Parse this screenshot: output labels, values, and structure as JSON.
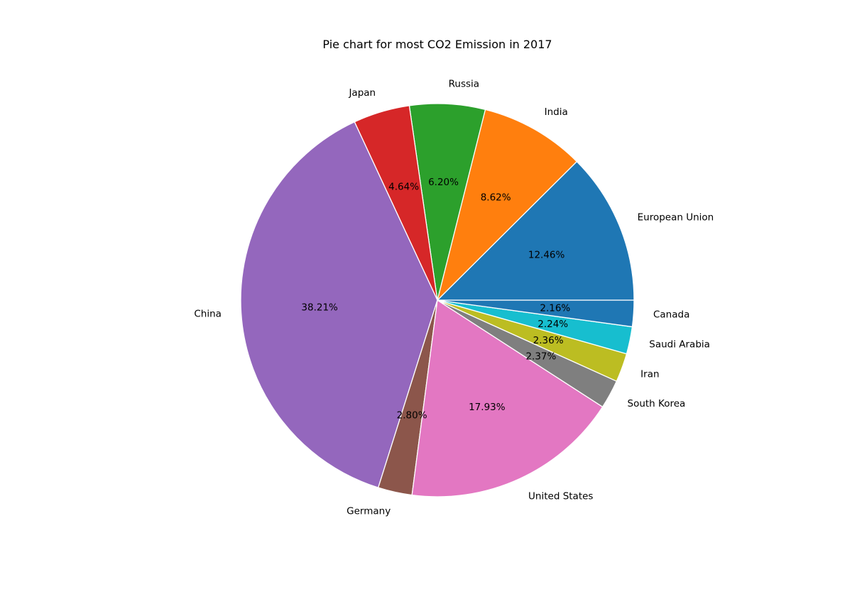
{
  "chart_data": {
    "type": "pie",
    "title": "Pie chart for most CO2 Emission in 2017",
    "slices": [
      {
        "label": "European Union",
        "value": 12.46,
        "pct": "12.46%",
        "color": "#1f77b4"
      },
      {
        "label": "India",
        "value": 8.62,
        "pct": "8.62%",
        "color": "#ff7f0e"
      },
      {
        "label": "Russia",
        "value": 6.2,
        "pct": "6.20%",
        "color": "#2ca02c"
      },
      {
        "label": "Japan",
        "value": 4.64,
        "pct": "4.64%",
        "color": "#d62728"
      },
      {
        "label": "China",
        "value": 38.21,
        "pct": "38.21%",
        "color": "#9467bd"
      },
      {
        "label": "Germany",
        "value": 2.8,
        "pct": "2.80%",
        "color": "#8c564b"
      },
      {
        "label": "United States",
        "value": 17.93,
        "pct": "17.93%",
        "color": "#e377c2"
      },
      {
        "label": "South Korea",
        "value": 2.37,
        "pct": "2.37%",
        "color": "#7f7f7f"
      },
      {
        "label": "Iran",
        "value": 2.36,
        "pct": "2.36%",
        "color": "#bcbd22"
      },
      {
        "label": "Saudi Arabia",
        "value": 2.24,
        "pct": "2.24%",
        "color": "#17becf"
      },
      {
        "label": "Canada",
        "value": 2.16,
        "pct": "2.16%",
        "color": "#1f77b4"
      }
    ],
    "start_angle_deg": 0,
    "direction": "counterclockwise",
    "legend": "none"
  }
}
